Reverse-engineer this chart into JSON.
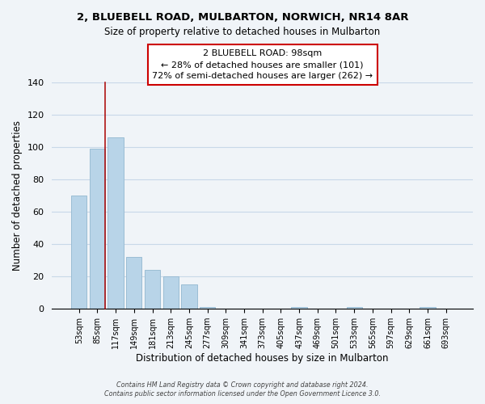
{
  "title": "2, BLUEBELL ROAD, MULBARTON, NORWICH, NR14 8AR",
  "subtitle": "Size of property relative to detached houses in Mulbarton",
  "xlabel": "Distribution of detached houses by size in Mulbarton",
  "ylabel": "Number of detached properties",
  "bar_labels": [
    "53sqm",
    "85sqm",
    "117sqm",
    "149sqm",
    "181sqm",
    "213sqm",
    "245sqm",
    "277sqm",
    "309sqm",
    "341sqm",
    "373sqm",
    "405sqm",
    "437sqm",
    "469sqm",
    "501sqm",
    "533sqm",
    "565sqm",
    "597sqm",
    "629sqm",
    "661sqm",
    "693sqm"
  ],
  "bar_heights": [
    70,
    99,
    106,
    32,
    24,
    20,
    15,
    1,
    0,
    0,
    0,
    0,
    1,
    0,
    0,
    1,
    0,
    0,
    0,
    1,
    0
  ],
  "bar_color": "#b8d4e8",
  "bar_edge_color": "#9bbdd4",
  "ylim": [
    0,
    140
  ],
  "yticks": [
    0,
    20,
    40,
    60,
    80,
    100,
    120,
    140
  ],
  "annotation_title": "2 BLUEBELL ROAD: 98sqm",
  "annotation_line1": "← 28% of detached houses are smaller (101)",
  "annotation_line2": "72% of semi-detached houses are larger (262) →",
  "annotation_box_color": "#ffffff",
  "annotation_border_color": "#cc0000",
  "footer_line1": "Contains HM Land Registry data © Crown copyright and database right 2024.",
  "footer_line2": "Contains public sector information licensed under the Open Government Licence 3.0.",
  "background_color": "#f0f4f8",
  "grid_color": "#c8d8e8"
}
